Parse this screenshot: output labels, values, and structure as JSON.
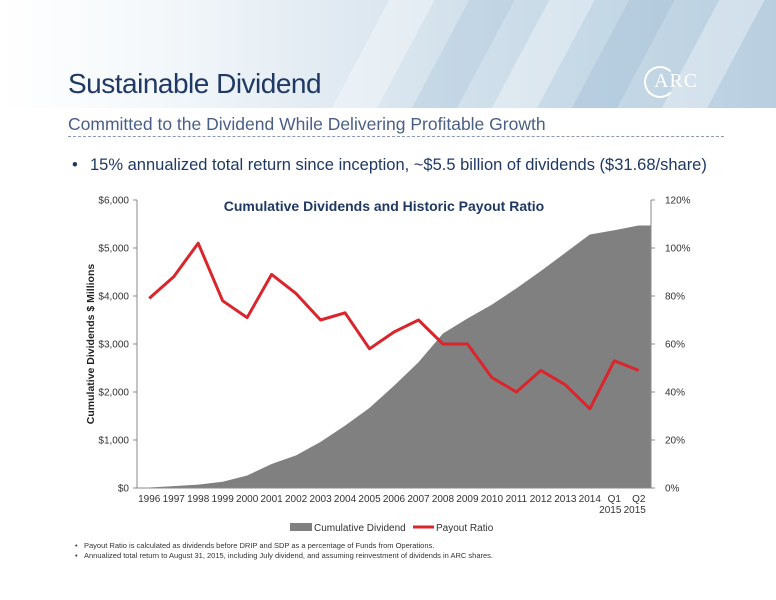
{
  "slide": {
    "title": "Sustainable Dividend",
    "subtitle": "Committed to the Dividend While Delivering Profitable Growth",
    "bullet": "15% annualized total return since inception, ~$5.5 billion of dividends ($31.68/share)",
    "logo_text": "ARC",
    "footnotes": [
      "Payout Ratio is calculated as dividends before DRIP and SDP as a percentage of Funds from Operations.",
      "Annualized total return to August 31, 2015, including July dividend, and assuming reinvestment of dividends in ARC shares."
    ]
  },
  "colors": {
    "title": "#1f3864",
    "area": "#808080",
    "line": "#d9252b",
    "axis": "#888888"
  },
  "chart_data": {
    "type": "area",
    "title": "Cumulative Dividends and Historic Payout Ratio",
    "categories": [
      "1996",
      "1997",
      "1998",
      "1999",
      "2000",
      "2001",
      "2002",
      "2003",
      "2004",
      "2005",
      "2006",
      "2007",
      "2008",
      "2009",
      "2010",
      "2011",
      "2012",
      "2013",
      "2014",
      "Q1 2015",
      "Q2 2015"
    ],
    "ylabel": "Cumulative Dividends $ Millions",
    "ylim": [
      0,
      6000
    ],
    "y_ticks": [
      "$0",
      "$1,000",
      "$2,000",
      "$3,000",
      "$4,000",
      "$5,000",
      "$6,000"
    ],
    "y2lim": [
      0,
      120
    ],
    "y2_ticks": [
      "0%",
      "20%",
      "40%",
      "60%",
      "80%",
      "100%",
      "120%"
    ],
    "series": [
      {
        "name": "Cumulative Dividend",
        "axis": "left",
        "kind": "area",
        "values": [
          10,
          40,
          70,
          130,
          260,
          500,
          680,
          960,
          1300,
          1670,
          2130,
          2620,
          3220,
          3530,
          3820,
          4160,
          4520,
          4900,
          5280,
          5370,
          5470
        ]
      },
      {
        "name": "Payout Ratio",
        "axis": "right",
        "kind": "line",
        "values": [
          79,
          88,
          102,
          78,
          71,
          89,
          81,
          70,
          73,
          58,
          65,
          70,
          60,
          60,
          46,
          40,
          49,
          43,
          33,
          53,
          49
        ]
      }
    ],
    "legend": "bottom",
    "grid": false
  }
}
